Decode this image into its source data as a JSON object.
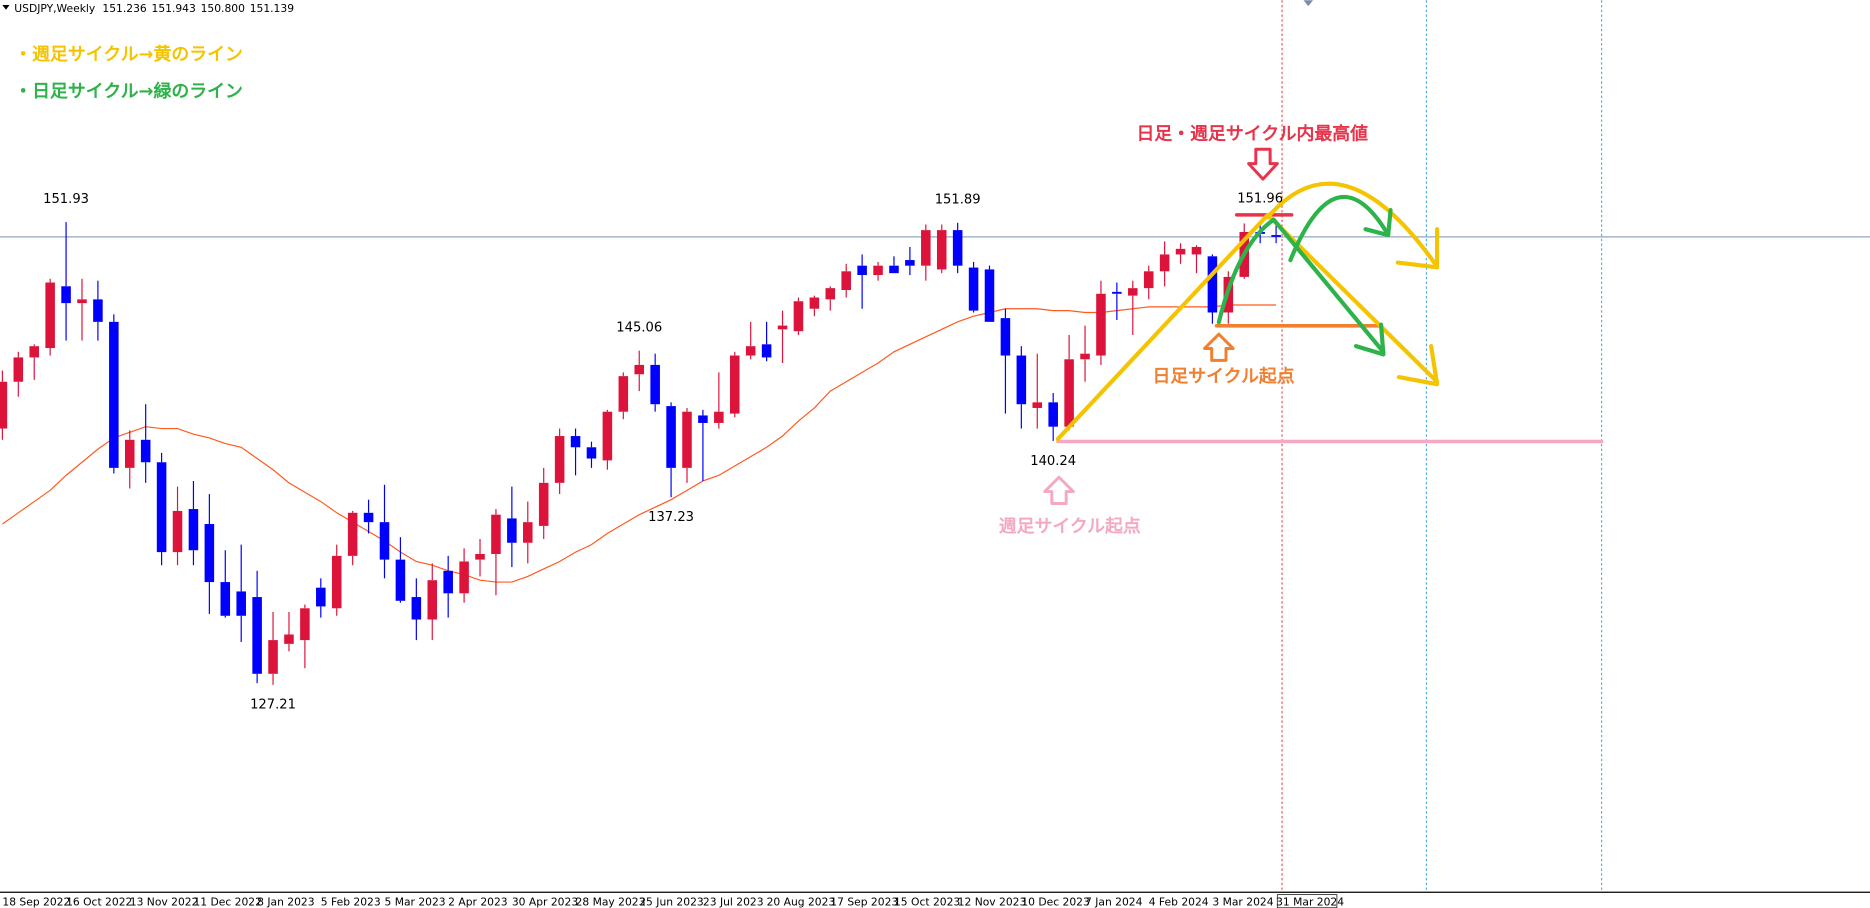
{
  "chart_data": {
    "type": "candlestick",
    "title": "USDJPY,Weekly",
    "quote": [
      151.236,
      151.943,
      {
        "value": 150.8,
        "label": "150.800"
      },
      151.139
    ],
    "categories": [
      "18 Sep 2022",
      null,
      null,
      null,
      "16 Oct 2022",
      null,
      null,
      null,
      "13 Nov 2022",
      null,
      null,
      null,
      "11 Dec 2022",
      null,
      null,
      null,
      "8 Jan 2023",
      null,
      null,
      null,
      "5 Feb 2023",
      null,
      null,
      null,
      "5 Mar 2023",
      null,
      null,
      null,
      "2 Apr 2023",
      null,
      null,
      null,
      "30 Apr 2023",
      null,
      null,
      null,
      "28 May 2023",
      null,
      null,
      null,
      "25 Jun 2023",
      null,
      null,
      null,
      "23 Jul 2023",
      null,
      null,
      null,
      "20 Aug 2023",
      null,
      null,
      null,
      "17 Sep 2023",
      null,
      null,
      null,
      "15 Oct 2023",
      null,
      null,
      null,
      "12 Nov 2023",
      null,
      null,
      null,
      "10 Dec 2023",
      null,
      null,
      null,
      "7 Jan 2024",
      null,
      null,
      null,
      "4 Feb 2024",
      null,
      null,
      null,
      "3 Mar 2024",
      null,
      null,
      null,
      "31 Mar 2024"
    ],
    "open": [
      140.9,
      143.4,
      144.7,
      145.2,
      148.5,
      147.6,
      147.8,
      146.6,
      138.8,
      140.3,
      139.1,
      134.3,
      136.6,
      135.8,
      132.7,
      132.2,
      131.9,
      127.8,
      129.4,
      129.6,
      132.4,
      131.3,
      134.1,
      136.4,
      135.9,
      133.9,
      131.9,
      130.7,
      133.3,
      132.1,
      133.9,
      134.2,
      136.1,
      134.8,
      135.7,
      138.0,
      140.5,
      139.9,
      139.2,
      141.8,
      143.8,
      144.3,
      142.1,
      138.8,
      141.6,
      141.2,
      141.7,
      144.8,
      145.4,
      146.2,
      146.1,
      147.3,
      147.8,
      148.3,
      149.6,
      149.1,
      149.6,
      149.9,
      149.6,
      149.4,
      151.5,
      149.5,
      149.4,
      146.8,
      144.8,
      142.0,
      142.3,
      141.0,
      144.6,
      144.8,
      148.2,
      148.0,
      148.4,
      149.3,
      150.2,
      150.2,
      150.1,
      147.1,
      149.0,
      151.4,
      151.236
    ],
    "high": [
      144.0,
      145.0,
      145.4,
      148.9,
      151.93,
      148.9,
      148.8,
      147.0,
      140.8,
      142.2,
      139.6,
      137.8,
      138.1,
      137.4,
      134.4,
      134.7,
      133.3,
      131.1,
      131.1,
      131.5,
      132.9,
      134.7,
      136.5,
      137.1,
      137.9,
      135.1,
      132.9,
      133.7,
      134.1,
      134.5,
      135.0,
      136.6,
      137.8,
      137.0,
      138.8,
      140.9,
      140.9,
      140.2,
      141.9,
      143.9,
      145.06,
      144.9,
      142.3,
      142.0,
      141.9,
      143.9,
      145.0,
      146.6,
      146.6,
      147.2,
      147.9,
      148.0,
      148.5,
      149.7,
      150.2,
      149.8,
      150.1,
      150.6,
      151.8,
      151.8,
      151.89,
      149.8,
      149.6,
      147.3,
      145.3,
      144.9,
      142.8,
      145.9,
      146.4,
      148.8,
      148.7,
      148.8,
      149.6,
      150.9,
      150.8,
      150.7,
      150.2,
      149.3,
      151.86,
      151.96,
      151.943
    ],
    "low": [
      140.3,
      142.6,
      143.5,
      144.8,
      145.6,
      145.6,
      145.6,
      138.5,
      137.7,
      138.0,
      133.6,
      133.6,
      133.6,
      131.0,
      130.8,
      129.5,
      127.3,
      127.21,
      129.0,
      128.1,
      130.8,
      130.9,
      133.6,
      135.3,
      132.9,
      131.6,
      129.6,
      129.6,
      130.8,
      131.6,
      133.0,
      132.0,
      133.5,
      133.7,
      135.0,
      137.4,
      138.4,
      138.8,
      138.7,
      141.4,
      142.9,
      141.8,
      137.23,
      138.0,
      138.1,
      140.9,
      141.5,
      144.6,
      144.5,
      144.4,
      145.9,
      146.9,
      147.2,
      147.9,
      147.3,
      148.8,
      149.2,
      149.1,
      148.8,
      149.2,
      149.2,
      147.1,
      146.6,
      141.7,
      140.9,
      140.9,
      140.24,
      140.8,
      143.4,
      144.3,
      146.7,
      145.9,
      147.8,
      148.5,
      149.7,
      149.2,
      146.5,
      146.5,
      148.9,
      150.8,
      150.8
    ],
    "close": [
      143.4,
      144.7,
      145.3,
      148.7,
      147.6,
      147.8,
      146.6,
      138.8,
      140.3,
      139.1,
      134.3,
      136.5,
      134.4,
      132.7,
      130.9,
      130.9,
      127.8,
      129.6,
      129.9,
      131.3,
      131.4,
      134.1,
      136.4,
      135.9,
      133.9,
      131.7,
      130.7,
      132.8,
      132.1,
      133.8,
      134.2,
      136.3,
      134.8,
      135.9,
      138.0,
      140.5,
      139.9,
      139.3,
      141.8,
      143.7,
      144.3,
      142.2,
      138.8,
      141.8,
      141.2,
      141.8,
      144.8,
      145.3,
      144.7,
      146.4,
      147.7,
      147.9,
      148.4,
      149.3,
      149.1,
      149.6,
      149.2,
      149.6,
      151.5,
      151.5,
      149.6,
      147.2,
      146.6,
      144.8,
      142.2,
      142.3,
      141.0,
      144.6,
      144.9,
      148.1,
      148.1,
      148.4,
      149.3,
      150.2,
      150.5,
      150.6,
      147.1,
      149.0,
      151.4,
      151.3,
      151.139
    ],
    "up_color": "#dc143c",
    "down_color": "#0000ff",
    "ma": {
      "color": "#ff5a1f",
      "values": [
        135.8,
        136.4,
        137.0,
        137.6,
        138.4,
        139.1,
        139.8,
        140.4,
        140.7,
        141.0,
        140.9,
        140.9,
        140.6,
        140.4,
        140.1,
        139.9,
        139.3,
        138.7,
        138.0,
        137.5,
        137.0,
        136.4,
        135.9,
        135.4,
        134.9,
        134.3,
        133.8,
        133.6,
        133.3,
        133.1,
        132.8,
        132.7,
        132.7,
        133.0,
        133.4,
        133.8,
        134.3,
        134.7,
        135.3,
        135.8,
        136.3,
        136.7,
        137.1,
        137.6,
        138.1,
        138.4,
        138.9,
        139.4,
        139.9,
        140.5,
        141.3,
        142.0,
        142.9,
        143.4,
        143.9,
        144.4,
        145.0,
        145.4,
        145.8,
        146.2,
        146.6,
        146.9,
        147.1,
        147.3,
        147.3,
        147.3,
        147.2,
        147.2,
        147.1,
        147.1,
        147.2,
        147.3,
        147.4,
        147.4,
        147.4,
        147.4,
        147.4,
        147.5,
        147.5,
        147.5,
        147.5
      ]
    },
    "bid_color": "#8fa8c0",
    "extremes": [
      151.93,
      127.21,
      145.06,
      137.23,
      151.89,
      140.24,
      151.96
    ],
    "ylim": [
      116.13,
      163.78
    ],
    "notes": [
      {
        "text": "・週足サイクル→黄のライン",
        "color": "#f5c400"
      },
      {
        "text": "・日足サイクル→緑のライン",
        "color": "#2db34a"
      },
      {
        "text": "日足・週足サイクル内最高値",
        "color": "#e8334a"
      },
      {
        "text": "日足サイクル起点",
        "color": "#f08030"
      },
      {
        "text": "週足サイクル起点",
        "color": "#f4a8c4"
      }
    ]
  }
}
